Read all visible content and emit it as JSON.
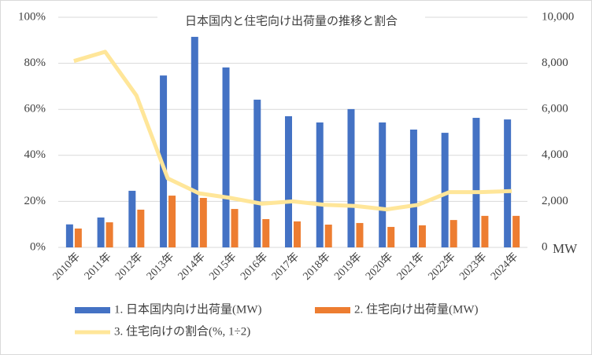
{
  "chart_data": {
    "type": "combo",
    "title": "日本国内と住宅向け出荷量の推移と割合",
    "categories": [
      "2010年",
      "2011年",
      "2012年",
      "2013年",
      "2014年",
      "2015年",
      "2016年",
      "2017年",
      "2018年",
      "2019年",
      "2020年",
      "2021年",
      "2022年",
      "2023年",
      "2024年"
    ],
    "series": [
      {
        "name": "1. 日本国内向け出荷量(MW)",
        "type": "bar",
        "axis": "y2",
        "color": "#4472c4",
        "values": [
          1000,
          1300,
          2460,
          7470,
          9150,
          7820,
          6420,
          5700,
          5430,
          6010,
          5430,
          5120,
          4980,
          5630,
          5560
        ]
      },
      {
        "name": "2. 住宅向け出荷量(MW)",
        "type": "bar",
        "axis": "y2",
        "color": "#ed7d31",
        "values": [
          820,
          1090,
          1640,
          2250,
          2150,
          1670,
          1230,
          1130,
          990,
          1060,
          890,
          960,
          1190,
          1370,
          1370
        ]
      },
      {
        "name": "3. 住宅向けの割合(%, 1÷2)",
        "type": "line",
        "axis": "y",
        "color": "#ffe699",
        "values": [
          81,
          85,
          66,
          30,
          23.5,
          21.5,
          19,
          20,
          18.5,
          18,
          16.5,
          18.5,
          24,
          24,
          24.5
        ]
      }
    ],
    "ylim": [
      0,
      100
    ],
    "yticks": [
      {
        "value": 0,
        "label": "0%"
      },
      {
        "value": 20,
        "label": "20%"
      },
      {
        "value": 40,
        "label": "40%"
      },
      {
        "value": 60,
        "label": "60%"
      },
      {
        "value": 80,
        "label": "80%"
      },
      {
        "value": 100,
        "label": "100%"
      }
    ],
    "y2lim": [
      0,
      10000
    ],
    "y2ticks": [
      0,
      {
        "value": 2000,
        "label": "2,000"
      },
      {
        "value": 4000,
        "label": "4,000"
      },
      {
        "value": 6000,
        "label": "6,000"
      },
      {
        "value": 8000,
        "label": "8,000"
      },
      {
        "value": 10000,
        "label": "10,000"
      }
    ],
    "y2label": "MW",
    "grid": true
  }
}
